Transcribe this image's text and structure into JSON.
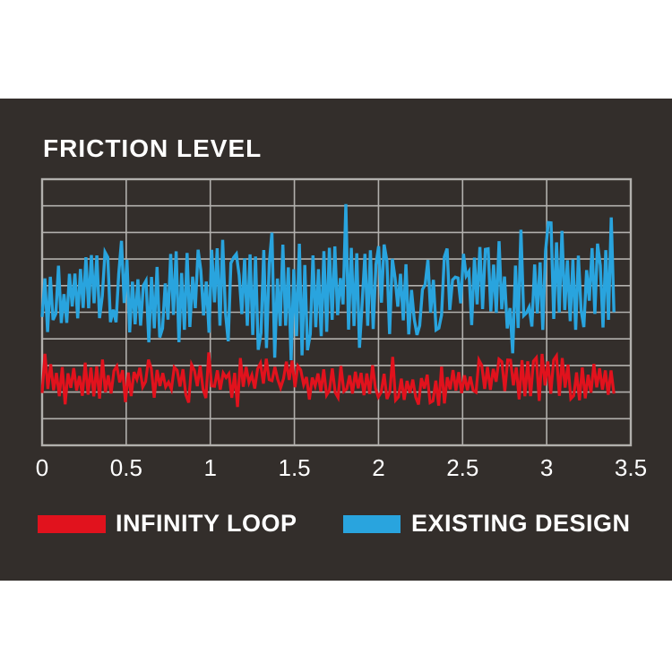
{
  "panel": {
    "title": "FRICTION LEVEL",
    "title_color": "#ffffff",
    "background": "#332e2b"
  },
  "chart_data": {
    "type": "line",
    "title": "FRICTION LEVEL",
    "xlabel": "",
    "ylabel": "",
    "x_range": [
      0,
      3.5
    ],
    "x_ticks": [
      "0",
      "0.5",
      "1",
      "1.5",
      "2",
      "2.5",
      "3",
      "3.5"
    ],
    "y_axis_labels_visible": false,
    "grid": {
      "on": true,
      "rows": 10,
      "cols": 7,
      "color": "#b2b0ad"
    },
    "axis_label_color": "#ffffff",
    "legend_position": "bottom",
    "series": [
      {
        "name": "EXISTING DESIGN",
        "color": "#29a4de",
        "stroke_width": 3.4,
        "draw_order": 1,
        "description": "high noisy friction trace, mean ~0.57 of plot height, amplitude swells near t=1.5 and t=3.0, spans t=0 to 3.4",
        "gen": {
          "seed": 20,
          "points": 210,
          "t_end": 3.4,
          "mean": 0.566,
          "amp": 0.135,
          "bumps": [
            {
              "c": 1.55,
              "w": 0.42,
              "g": 0.115
            },
            {
              "c": 3.05,
              "w": 0.45,
              "g": 0.088
            },
            {
              "c": 0.95,
              "w": 0.3,
              "g": 0.034
            }
          ],
          "hold": 0.18,
          "spike_p": 0.1,
          "spike_gain": 1.5,
          "wander": 0.05,
          "min": 0.186,
          "max": 0.973
        }
      },
      {
        "name": "INFINITY LOOP",
        "color": "#e1121d",
        "stroke_width": 3.2,
        "draw_order": 2,
        "description": "low noisy friction trace, mean ~0.24 of plot height, slightly larger excursions after t=2.6, spans t=0 to 3.4",
        "gen": {
          "seed": 11,
          "points": 200,
          "t_end": 3.4,
          "mean": 0.244,
          "amp": 0.058,
          "bumps": [
            {
              "c": 3.0,
              "w": 0.45,
              "g": 0.034
            },
            {
              "c": 0.05,
              "w": 0.25,
              "g": 0.02
            }
          ],
          "hold": 0.15,
          "spike_p": 0.1,
          "spike_gain": 1.9,
          "wander": 0.03,
          "min": 0.085,
          "max": 0.454
        }
      }
    ]
  },
  "legend": {
    "items": [
      {
        "label": "INFINITY LOOP",
        "color": "#e1121d"
      },
      {
        "label": "EXISTING DESIGN",
        "color": "#29a4de"
      }
    ]
  }
}
